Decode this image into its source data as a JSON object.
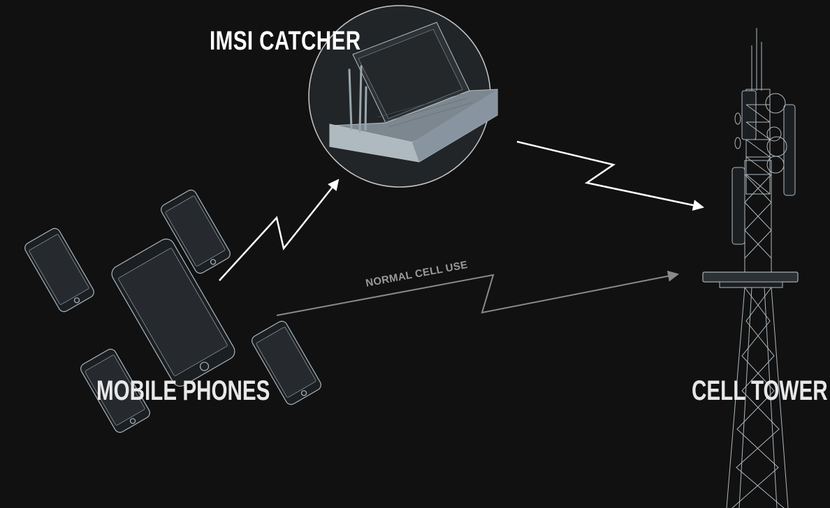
{
  "labels": {
    "imsi_catcher": "IMSI CATCHER",
    "mobile_phones": "MOBILE PHONES",
    "cell_tower": "CELL TOWER",
    "normal_cell_use": "NORMAL CELL USE"
  },
  "colors": {
    "background": "#111111",
    "label": "#ffffff",
    "signal_intercept": "#ffffff",
    "signal_normal": "#8a8a8a",
    "wireframe": "#b8c4cc"
  }
}
